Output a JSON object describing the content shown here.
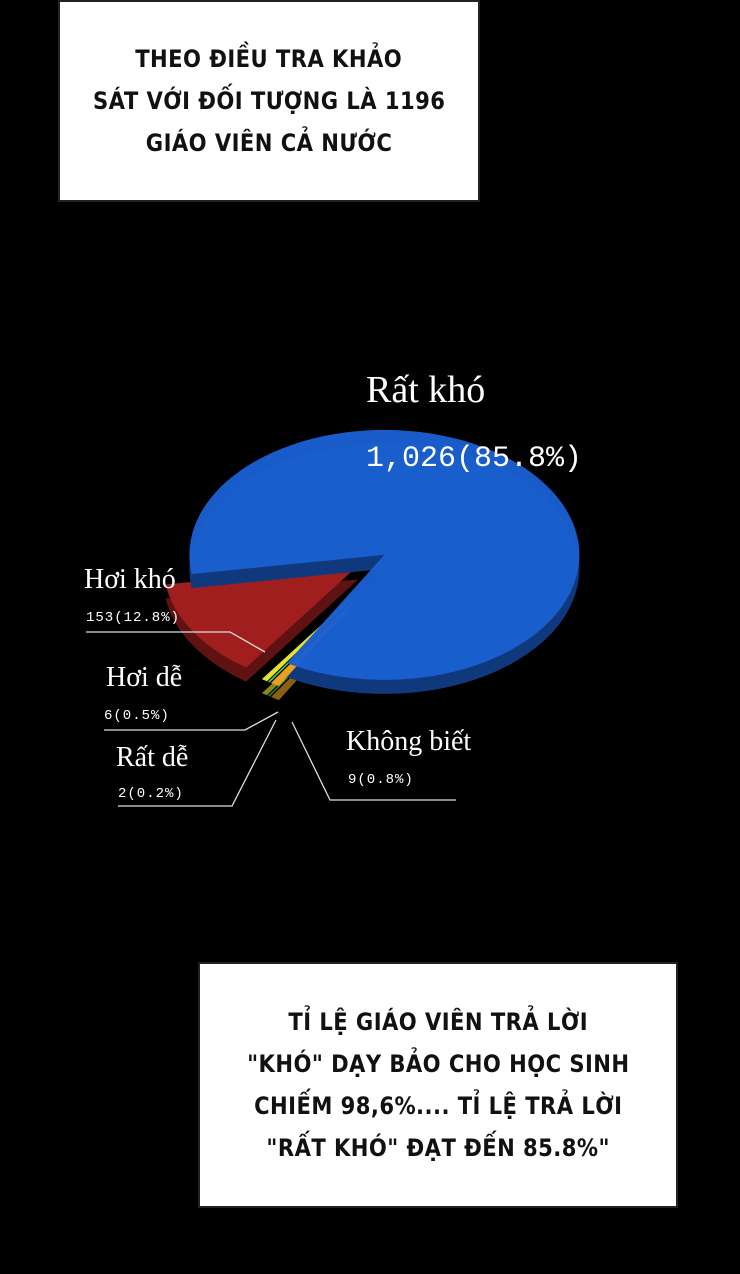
{
  "top_caption": {
    "lines": [
      "THEO ĐIỀU TRA KHẢO",
      "SÁT VỚI ĐỐI TƯỢNG LÀ 1196",
      "GIÁO VIÊN CẢ NƯỚC"
    ]
  },
  "bottom_caption": {
    "lines": [
      "TỈ LỆ GIÁO VIÊN TRẢ LỜI",
      "\"KHÓ\" DẠY BẢO CHO HỌC SINH",
      "CHIẾM 98,6%.... TỈ LỆ TRẢ LỜI",
      "\"RẤT KHÓ\" ĐẠT ĐẾN 85.8%\""
    ]
  },
  "chart_data": {
    "type": "pie",
    "style": "3d-exploded",
    "slices": [
      {
        "label": "Rất khó",
        "value": 1026,
        "percent": 85.8,
        "value_label": "1,026(85.8%)",
        "color": "#1a5fd0"
      },
      {
        "label": "Hơi khó",
        "value": 153,
        "percent": 12.8,
        "value_label": "153(12.8%)",
        "color": "#a01e1e"
      },
      {
        "label": "Hơi dễ",
        "value": 6,
        "percent": 0.5,
        "value_label": "6(0.5%)",
        "color": "#e8e030"
      },
      {
        "label": "Rất dễ",
        "value": 2,
        "percent": 0.2,
        "value_label": "2(0.2%)",
        "color": "#4ccf3a"
      },
      {
        "label": "Không biết",
        "value": 9,
        "percent": 0.8,
        "value_label": "9(0.8%)",
        "color": "#e8a020"
      }
    ]
  }
}
